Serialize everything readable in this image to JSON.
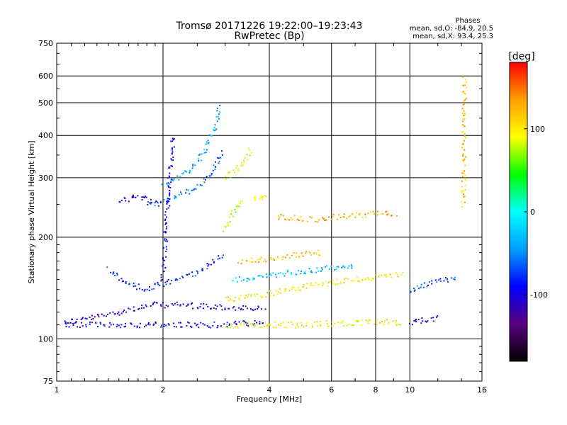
{
  "header": {
    "title": "Tromsø 20171226 19:22:00–19:23:43",
    "subtitle": "RwPretec (Bp)"
  },
  "phases_box": {
    "label": "Phases",
    "line_o": "mean, sd,O: -84.9, 20.5",
    "line_x": "mean, sd,X:  93.4, 25.3"
  },
  "colorbar": {
    "label": "[deg]",
    "ticks": [
      "100",
      "0",
      "-100"
    ],
    "tick_values": [
      100,
      0,
      -100
    ],
    "range": [
      -180,
      180
    ],
    "colors": [
      "#000000",
      "#5a0080",
      "#0000ff",
      "#00a0ff",
      "#00ffff",
      "#00ff00",
      "#ffff00",
      "#ffa000",
      "#ff0000"
    ]
  },
  "chart_data": {
    "type": "scatter",
    "title": "Tromsø 20171226 19:22:00–19:23:43",
    "subtitle": "RwPretec (Bp)",
    "xlabel": "Frequency [MHz]",
    "ylabel": "Stationary phase Virtual Height [km]",
    "xscale": "log",
    "yscale": "log",
    "xlim": [
      1,
      16
    ],
    "ylim": [
      75,
      750
    ],
    "x_tick_values": [
      1,
      2,
      4,
      6,
      8,
      10,
      16
    ],
    "x_tick_labels": [
      "1",
      "2",
      "4",
      "6",
      "8",
      "10",
      "16"
    ],
    "y_tick_values": [
      75,
      100,
      200,
      300,
      400,
      500,
      600,
      750
    ],
    "y_tick_labels": [
      "75",
      "100",
      "200",
      "300",
      "400",
      "500",
      "600",
      "750"
    ],
    "x_grid": [
      2,
      4,
      6,
      8,
      10
    ],
    "y_grid": [
      100,
      200,
      300,
      400,
      500,
      600
    ],
    "grid": true,
    "color_encoding": "phase [deg]",
    "traces": [
      {
        "x": [
          1.05,
          1.3,
          1.6,
          1.9,
          2.2,
          2.5,
          2.9,
          3.2,
          3.6,
          3.9
        ],
        "y": [
          112,
          116,
          122,
          126,
          126,
          125,
          124,
          123,
          123,
          122
        ],
        "phase": -110
      },
      {
        "x": [
          1.05,
          1.4,
          1.8,
          2.2,
          2.6,
          2.9,
          3.3,
          3.6,
          3.9
        ],
        "y": [
          110,
          110,
          110,
          110,
          110,
          110,
          111,
          111,
          112
        ],
        "phase": -95
      },
      {
        "x": [
          1.4,
          1.6,
          1.8,
          2.0,
          2.2,
          2.4,
          2.6,
          2.8,
          2.95
        ],
        "y": [
          160,
          145,
          140,
          145,
          150,
          155,
          160,
          170,
          180
        ],
        "phase": -80
      },
      {
        "x": [
          1.8,
          2.0,
          2.2,
          2.4,
          2.6,
          2.8,
          2.95
        ],
        "y": [
          250,
          255,
          265,
          275,
          290,
          320,
          360
        ],
        "phase": -60
      },
      {
        "x": [
          2.0,
          2.2,
          2.4,
          2.6,
          2.8,
          2.9
        ],
        "y": [
          285,
          300,
          320,
          350,
          420,
          490
        ],
        "phase": -40
      },
      {
        "x": [
          2.0,
          2.05,
          2.1,
          2.15
        ],
        "y": [
          150,
          230,
          320,
          400
        ],
        "phase": -100
      },
      {
        "x": [
          1.5,
          1.65,
          1.8,
          1.95
        ],
        "y": [
          255,
          262,
          260,
          250
        ],
        "phase": -110
      },
      {
        "x": [
          3.0,
          3.15,
          3.3,
          3.45,
          3.55
        ],
        "y": [
          300,
          310,
          325,
          345,
          370
        ],
        "phase": 90
      },
      {
        "x": [
          3.0,
          3.1,
          3.2,
          3.35
        ],
        "y": [
          210,
          225,
          240,
          262
        ],
        "phase": 80
      },
      {
        "x": [
          3.6,
          3.75,
          3.9
        ],
        "y": [
          260,
          262,
          260
        ],
        "phase": 100
      },
      {
        "x": [
          3.0,
          3.4,
          3.8,
          4.3,
          4.9,
          5.6,
          6.3,
          7.2,
          8.2,
          9.6
        ],
        "y": [
          130,
          133,
          135,
          138,
          142,
          145,
          148,
          150,
          152,
          155
        ],
        "phase": 100
      },
      {
        "x": [
          3.0,
          3.5,
          4.0,
          4.5,
          5.0,
          5.8,
          6.8,
          7.8,
          8.8,
          9.6
        ],
        "y": [
          110,
          110,
          110,
          110,
          110,
          111,
          111,
          112,
          112,
          112
        ],
        "phase": 95
      },
      {
        "x": [
          3.2,
          3.7,
          4.2,
          4.8,
          5.4,
          6.2,
          7.0
        ],
        "y": [
          150,
          152,
          155,
          158,
          160,
          163,
          165
        ],
        "phase": -30
      },
      {
        "x": [
          3.3,
          3.8,
          4.4,
          5.0,
          5.7
        ],
        "y": [
          170,
          172,
          175,
          178,
          180
        ],
        "phase": 120
      },
      {
        "x": [
          4.2,
          4.8,
          5.4,
          6.2,
          7.2,
          8.3,
          9.2
        ],
        "y": [
          230,
          228,
          225,
          230,
          232,
          235,
          232
        ],
        "phase": 130
      },
      {
        "x": [
          10.0,
          10.6,
          11.3,
          12.0,
          12.8,
          13.6
        ],
        "y": [
          140,
          142,
          145,
          148,
          150,
          152
        ],
        "phase": -70
      },
      {
        "x": [
          10.0,
          10.6,
          11.3,
          12.0
        ],
        "y": [
          112,
          113,
          114,
          115
        ],
        "phase": -100
      },
      {
        "x": [
          14.2,
          14.25,
          14.3
        ],
        "y": [
          250,
          400,
          600
        ],
        "phase": 120
      }
    ]
  }
}
